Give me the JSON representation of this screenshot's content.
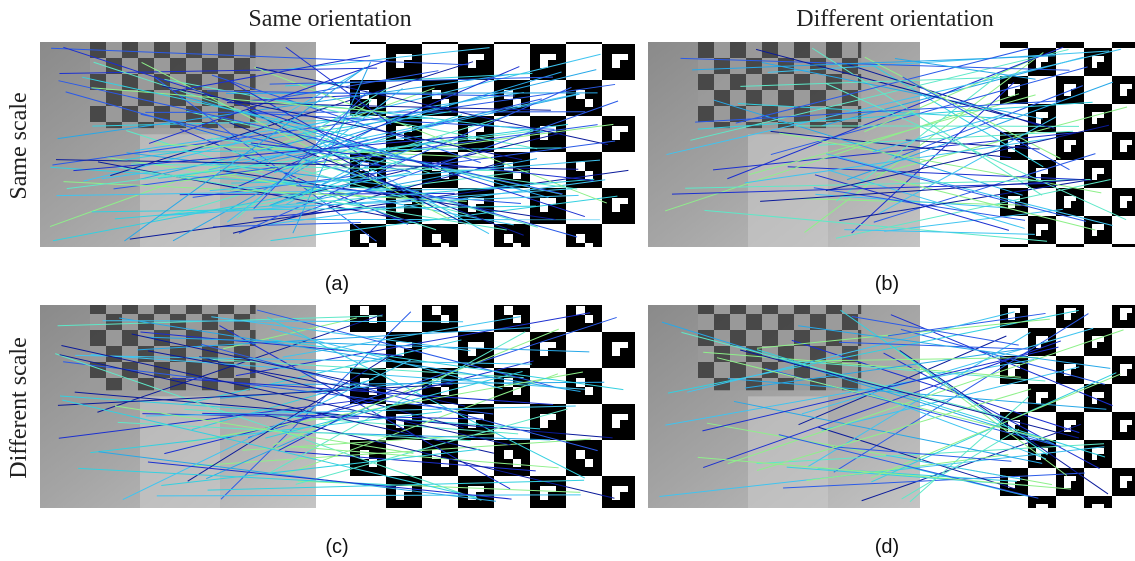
{
  "column_titles": [
    "Same orientation",
    "Different orientation"
  ],
  "row_titles": [
    "Same scale",
    "Different scale"
  ],
  "panel_labels": [
    "(a)",
    "(b)",
    "(c)",
    "(d)"
  ]
}
